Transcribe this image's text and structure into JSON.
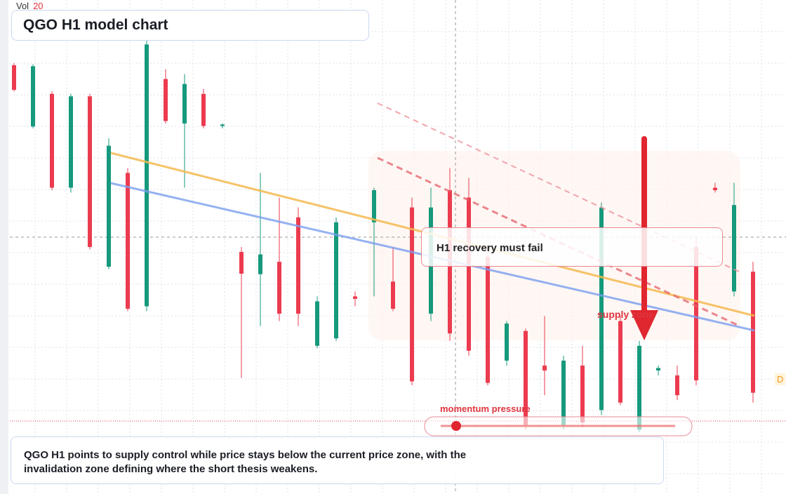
{
  "chart_data": {
    "type": "candlestick",
    "title": "QGO H1 model chart",
    "volume_label": "Vol",
    "volume_value": "20",
    "annotations": {
      "callout": "H1 recovery must fail",
      "zone": "supply zone",
      "pressure": "momentum pressure",
      "tag": "D"
    },
    "footer": "QGO H1 points to supply control while price stays below the current price zone, with the invalidation zone defining where the short thesis weakens.",
    "up_color": "#16997c",
    "down_color": "#ec3b4f",
    "ylim": [
      0,
      100
    ],
    "candles": [
      [
        86.8,
        87.2,
        81.5,
        81.8
      ],
      [
        74.4,
        87,
        74,
        86.6
      ],
      [
        81,
        81.5,
        61.5,
        62
      ],
      [
        62,
        81,
        61,
        80.5
      ],
      [
        80.5,
        81,
        49.5,
        50
      ],
      [
        46,
        72,
        45.5,
        70.5
      ],
      [
        65,
        66,
        37,
        37.5
      ],
      [
        38,
        92,
        37,
        91
      ],
      [
        84,
        86,
        75,
        75.5
      ],
      [
        75,
        85,
        62,
        83
      ],
      [
        81,
        82,
        74,
        74.5
      ],
      [
        74.5,
        75,
        74,
        74.8
      ],
      [
        49,
        50,
        23.5,
        44.6
      ],
      [
        44.5,
        65,
        34,
        48.5
      ],
      [
        47,
        60,
        35,
        36.5
      ],
      [
        56,
        58,
        34,
        36.5
      ],
      [
        30,
        40,
        29.5,
        39
      ],
      [
        31.5,
        56,
        31,
        55
      ],
      [
        40,
        41,
        38,
        39.5
      ],
      [
        55,
        62,
        40,
        61.5
      ],
      [
        43,
        50,
        37,
        37.5
      ],
      [
        58,
        60,
        22,
        22.8
      ],
      [
        36.5,
        62,
        35,
        58
      ],
      [
        61.5,
        66,
        31,
        32.5
      ],
      [
        60,
        64,
        28,
        29
      ],
      [
        48,
        49,
        22,
        22.5
      ],
      [
        27,
        35,
        26,
        34.5
      ],
      [
        33,
        33.5,
        13,
        14
      ],
      [
        26,
        36,
        20,
        25
      ],
      [
        14,
        28,
        13,
        27
      ],
      [
        26,
        30,
        13.5,
        14.5
      ],
      [
        17,
        59,
        16,
        58
      ],
      [
        35,
        36,
        18,
        18.5
      ],
      [
        13,
        31,
        12.5,
        30
      ],
      [
        25,
        26,
        24,
        25.5
      ],
      [
        24,
        26,
        19,
        20
      ],
      [
        50,
        52,
        22,
        23
      ],
      [
        62,
        63,
        61,
        61.5
      ],
      [
        41,
        63,
        40,
        58.5
      ],
      [
        45,
        47,
        18.5,
        20.5
      ]
    ]
  }
}
